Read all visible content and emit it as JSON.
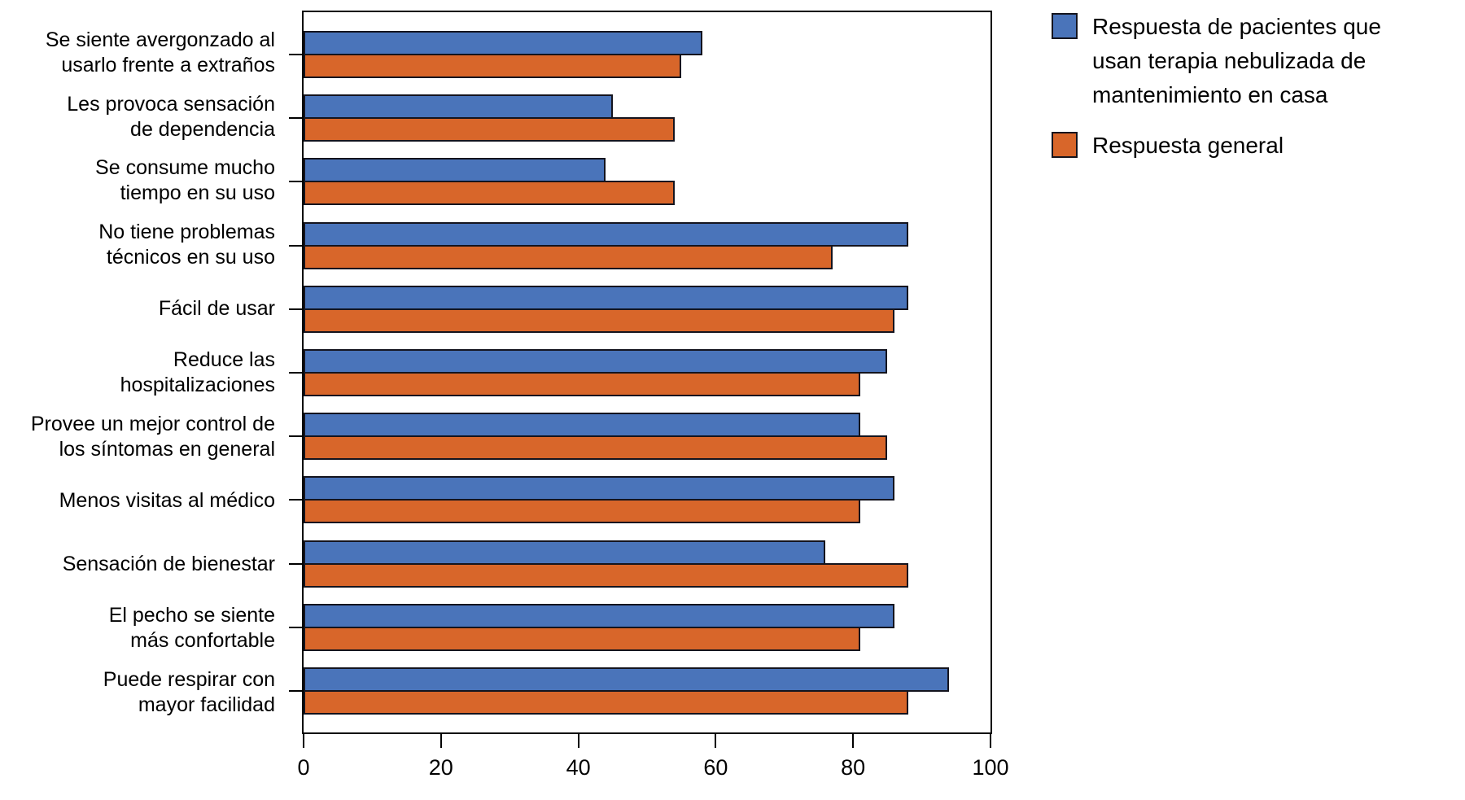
{
  "chart_data": {
    "type": "bar",
    "orientation": "horizontal",
    "title": "",
    "xlabel": "",
    "ylabel": "",
    "xlim": [
      0,
      100
    ],
    "xticks": [
      0,
      20,
      40,
      60,
      80,
      100
    ],
    "grid": false,
    "legend_position": "top-right",
    "background": "#FFFFFF",
    "bar_border_color": "#14141E",
    "axis_color": "#000000",
    "categories": [
      "Se siente avergonzado al\nusarlo frente a extraños",
      "Les provoca sensación\nde dependencia",
      "Se consume mucho\ntiempo en su uso",
      "No tiene problemas\ntécnicos en su uso",
      "Fácil de usar",
      "Reduce las\nhospitalizaciones",
      "Provee un mejor control de\nlos síntomas en general",
      "Menos visitas al médico",
      "Sensación de bienestar",
      "El pecho se siente\nmás confortable",
      "Puede respirar con\nmayor facilidad"
    ],
    "series": [
      {
        "name": "Respuesta de pacientes que\nusan terapia nebulizada de\nmantenimiento en casa",
        "color": "#4A74BA",
        "values": [
          58,
          45,
          44,
          88,
          88,
          85,
          81,
          86,
          76,
          86,
          94
        ]
      },
      {
        "name": "Respuesta general",
        "color": "#D8662A",
        "values": [
          55,
          54,
          54,
          77,
          86,
          81,
          85,
          81,
          88,
          81,
          88
        ]
      }
    ]
  }
}
